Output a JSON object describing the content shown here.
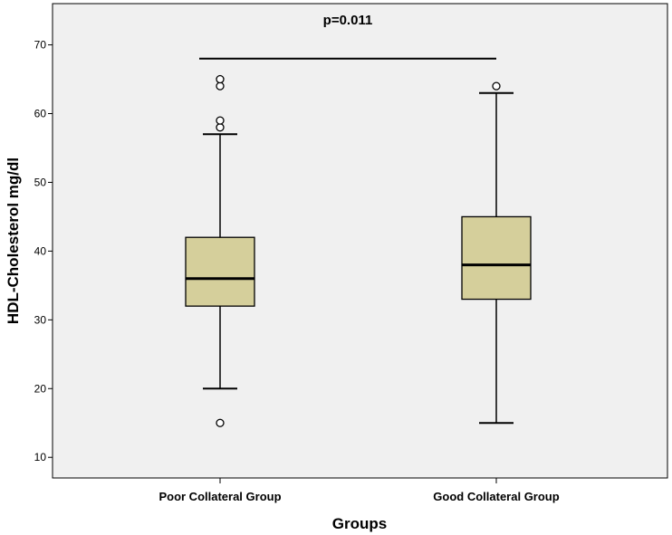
{
  "chart_data": {
    "type": "boxplot",
    "title": "",
    "xlabel": "Groups",
    "ylabel": "HDL-Cholesterol mg/dl",
    "ylim": [
      7,
      76
    ],
    "yticks": [
      10,
      20,
      30,
      40,
      50,
      60,
      70
    ],
    "grid": false,
    "categories": [
      "Poor Collateral Group",
      "Good Collateral Group"
    ],
    "boxes": [
      {
        "category": "Poor Collateral Group",
        "whisker_low": 20,
        "q1": 32,
        "median": 36,
        "q3": 42,
        "whisker_high": 57,
        "outliers": [
          15,
          58,
          59,
          64,
          65
        ]
      },
      {
        "category": "Good Collateral Group",
        "whisker_low": 15,
        "q1": 33,
        "median": 38,
        "q3": 45,
        "whisker_high": 63,
        "outliers": [
          64
        ]
      }
    ],
    "annotation": {
      "text": "p=0.011",
      "y": 68
    },
    "colors": {
      "box_fill": "#d5cf9b",
      "plot_background": "#f0f0f0",
      "line": "#000000"
    }
  }
}
